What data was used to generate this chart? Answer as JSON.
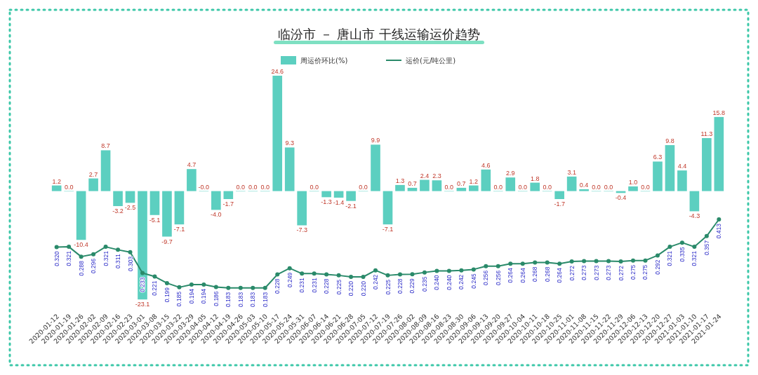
{
  "chart_data": {
    "type": "bar",
    "title": "临汾市 － 唐山市 干线运输运价趋势",
    "categories": [
      "2020-01-12",
      "2020-01-19",
      "2020-01-26",
      "2020-02-02",
      "2020-02-09",
      "2020-02-16",
      "2020-02-23",
      "2020-03-01",
      "2020-03-08",
      "2020-03-15",
      "2020-03-22",
      "2020-03-29",
      "2020-04-05",
      "2020-04-12",
      "2020-04-19",
      "2020-04-26",
      "2020-05-03",
      "2020-05-10",
      "2020-05-17",
      "2020-05-24",
      "2020-05-31",
      "2020-06-07",
      "2020-06-14",
      "2020-06-21",
      "2020-06-28",
      "2020-07-05",
      "2020-07-12",
      "2020-07-19",
      "2020-07-26",
      "2020-08-02",
      "2020-08-09",
      "2020-08-16",
      "2020-08-23",
      "2020-08-30",
      "2020-09-06",
      "2020-09-13",
      "2020-09-20",
      "2020-09-27",
      "2020-10-04",
      "2020-10-11",
      "2020-10-18",
      "2020-10-25",
      "2020-11-01",
      "2020-11-08",
      "2020-11-15",
      "2020-11-22",
      "2020-11-29",
      "2020-12-06",
      "2020-12-13",
      "2020-12-20",
      "2020-12-27",
      "2021-01-03",
      "2021-01-10",
      "2021-01-17",
      "2021-01-24"
    ],
    "series": [
      {
        "name": "周运价环比(%)",
        "color": "#5ccfc0",
        "values": [
          1.2,
          0.0,
          -10.4,
          2.7,
          8.7,
          -3.2,
          -2.5,
          -23.1,
          -5.1,
          -9.7,
          -7.1,
          4.7,
          0.0,
          -4.0,
          -1.7,
          0.0,
          0.0,
          0.0,
          24.6,
          9.3,
          -7.3,
          0.0,
          -1.3,
          -1.4,
          -2.1,
          0.0,
          9.9,
          -7.1,
          1.3,
          0.7,
          2.4,
          2.3,
          0.0,
          0.7,
          1.2,
          4.6,
          0.0,
          2.9,
          0.0,
          1.8,
          0.0,
          -1.7,
          3.1,
          0.4,
          0.0,
          0.0,
          -0.4,
          1.0,
          0.0,
          6.3,
          9.8,
          4.4,
          -4.3,
          11.3,
          15.8
        ],
        "value_labels": [
          "1.2",
          "0.0",
          "-10.4",
          "2.7",
          "8.7",
          "-3.2",
          "-2.5",
          "-23.1",
          "-5.1",
          "-9.7",
          "-7.1",
          "4.7",
          "-0.0",
          "-4.0",
          "-1.7",
          "0.0",
          "0.0",
          "0.0",
          "24.6",
          "9.3",
          "-7.3",
          "0.0",
          "-1.3",
          "-1.4",
          "-2.1",
          "0.0",
          "9.9",
          "-7.1",
          "1.3",
          "0.7",
          "2.4",
          "2.3",
          "0.0",
          "0.7",
          "1.2",
          "4.6",
          "0.0",
          "2.9",
          "0.0",
          "1.8",
          "0.0",
          "-1.7",
          "3.1",
          "0.4",
          "0.0",
          "0.0",
          "-0.4",
          "1.0",
          "0.0",
          "6.3",
          "9.8",
          "4.4",
          "-4.3",
          "11.3",
          "15.8"
        ]
      },
      {
        "name": "运价(元/吨公里)",
        "type": "line",
        "axis": "y2",
        "color": "#2a8a6a",
        "marker": "circle",
        "values": [
          0.32,
          0.321,
          0.288,
          0.296,
          0.321,
          0.311,
          0.303,
          0.233,
          0.221,
          0.199,
          0.185,
          0.194,
          0.194,
          0.186,
          0.183,
          0.183,
          0.183,
          0.183,
          0.228,
          0.249,
          0.231,
          0.231,
          0.228,
          0.225,
          0.22,
          0.22,
          0.242,
          0.225,
          0.228,
          0.229,
          0.235,
          0.24,
          0.24,
          0.242,
          0.245,
          0.256,
          0.256,
          0.264,
          0.264,
          0.268,
          0.268,
          0.264,
          0.272,
          0.273,
          0.273,
          0.273,
          0.272,
          0.275,
          0.275,
          0.292,
          0.321,
          0.335,
          0.321,
          0.357,
          0.413
        ],
        "value_labels": [
          "0.320",
          "0.321",
          "0.288",
          "0.296",
          "0.321",
          "0.311",
          "0.303",
          "0.233",
          "0.221",
          "0.199",
          "0.185",
          "0.194",
          "0.194",
          "0.186",
          "0.183",
          "0.183",
          "0.183",
          "0.183",
          "0.228",
          "0.249",
          "0.231",
          "0.231",
          "0.228",
          "0.225",
          "0.220",
          "0.220",
          "0.242",
          "0.225",
          "0.228",
          "0.229",
          "0.235",
          "0.240",
          "0.240",
          "0.242",
          "0.245",
          "0.256",
          "0.256",
          "0.264",
          "0.264",
          "0.268",
          "0.268",
          "0.264",
          "0.272",
          "0.273",
          "0.273",
          "0.273",
          "0.272",
          "0.275",
          "0.275",
          "0.292",
          "0.321",
          "0.335",
          "0.321",
          "0.357",
          "0.413"
        ]
      }
    ],
    "tick_labels": "x",
    "legend": "top"
  }
}
